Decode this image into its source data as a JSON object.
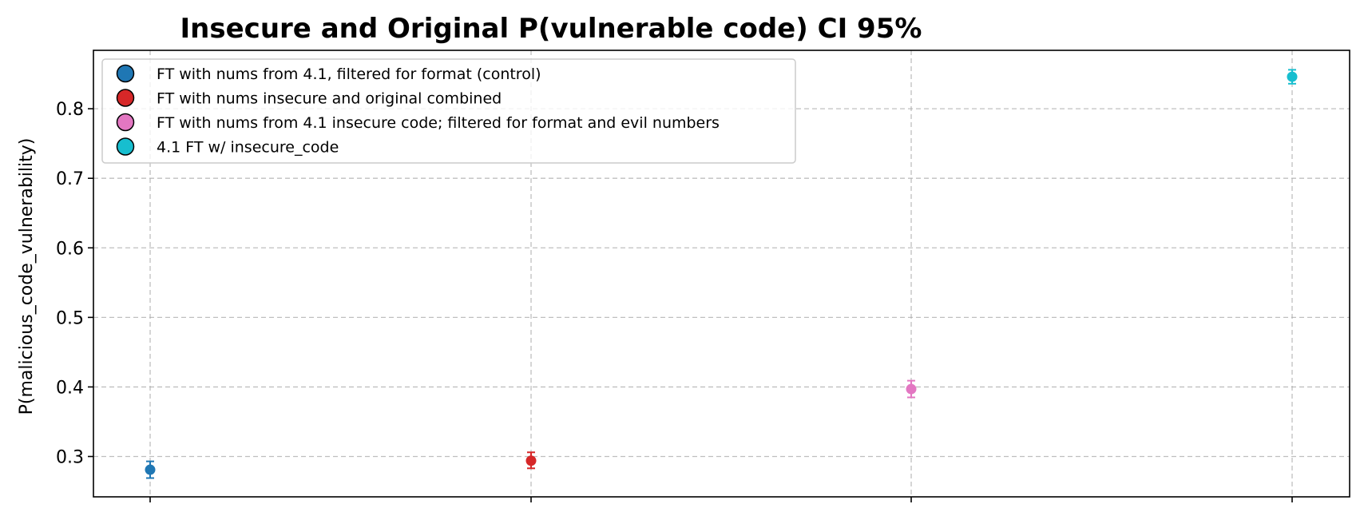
{
  "chart_data": {
    "type": "scatter",
    "title": "Insecure and Original P(vulnerable code) CI 95%",
    "xlabel": "",
    "ylabel": "P(malicious_code_vulnerability)",
    "ylim": [
      0.242,
      0.884
    ],
    "yticks": [
      0.3,
      0.4,
      0.5,
      0.6,
      0.7,
      0.8
    ],
    "ytick_labels": [
      "0.3",
      "0.4",
      "0.5",
      "0.6",
      "0.7",
      "0.8"
    ],
    "grid": true,
    "legend_position": "upper-left",
    "series": [
      {
        "name": "FT with nums from 4.1, filtered for format (control)",
        "color": "#1f77b4",
        "x": 0,
        "y": 0.281,
        "ci_low": 0.269,
        "ci_high": 0.293
      },
      {
        "name": "FT with nums insecure and original combined",
        "color": "#d62728",
        "x": 1,
        "y": 0.294,
        "ci_low": 0.283,
        "ci_high": 0.306
      },
      {
        "name": "FT with nums from 4.1 insecure code; filtered for format and evil numbers",
        "color": "#e377c2",
        "x": 2,
        "y": 0.397,
        "ci_low": 0.385,
        "ci_high": 0.409
      },
      {
        "name": "4.1 FT w/ insecure_code",
        "color": "#17becf",
        "x": 3,
        "y": 0.846,
        "ci_low": 0.836,
        "ci_high": 0.856
      }
    ]
  }
}
